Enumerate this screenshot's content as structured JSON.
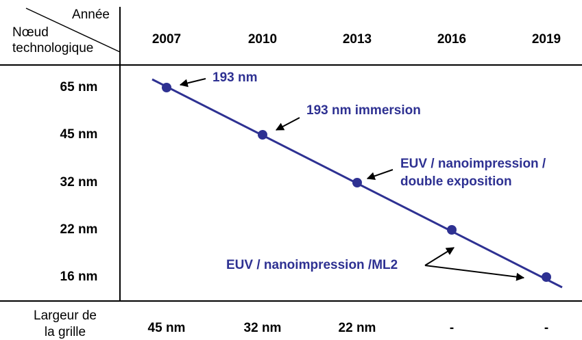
{
  "corner": {
    "column_header": "Année",
    "row_header": [
      "Nœud",
      "technologique"
    ]
  },
  "years": [
    "2007",
    "2010",
    "2013",
    "2016",
    "2019"
  ],
  "nodes": [
    "65 nm",
    "45 nm",
    "32 nm",
    "22 nm",
    "16 nm"
  ],
  "annotations": [
    {
      "lines": [
        "193 nm"
      ]
    },
    {
      "lines": [
        "193 nm immersion"
      ]
    },
    {
      "lines": [
        "EUV / nanoimpression /",
        "double exposition"
      ]
    },
    {
      "lines": [
        "EUV / nanoimpression /ML2"
      ]
    }
  ],
  "footer": {
    "label": [
      "Largeur de",
      "la grille"
    ],
    "values": [
      "45 nm",
      "32 nm",
      "22 nm",
      "-",
      "-"
    ]
  }
}
